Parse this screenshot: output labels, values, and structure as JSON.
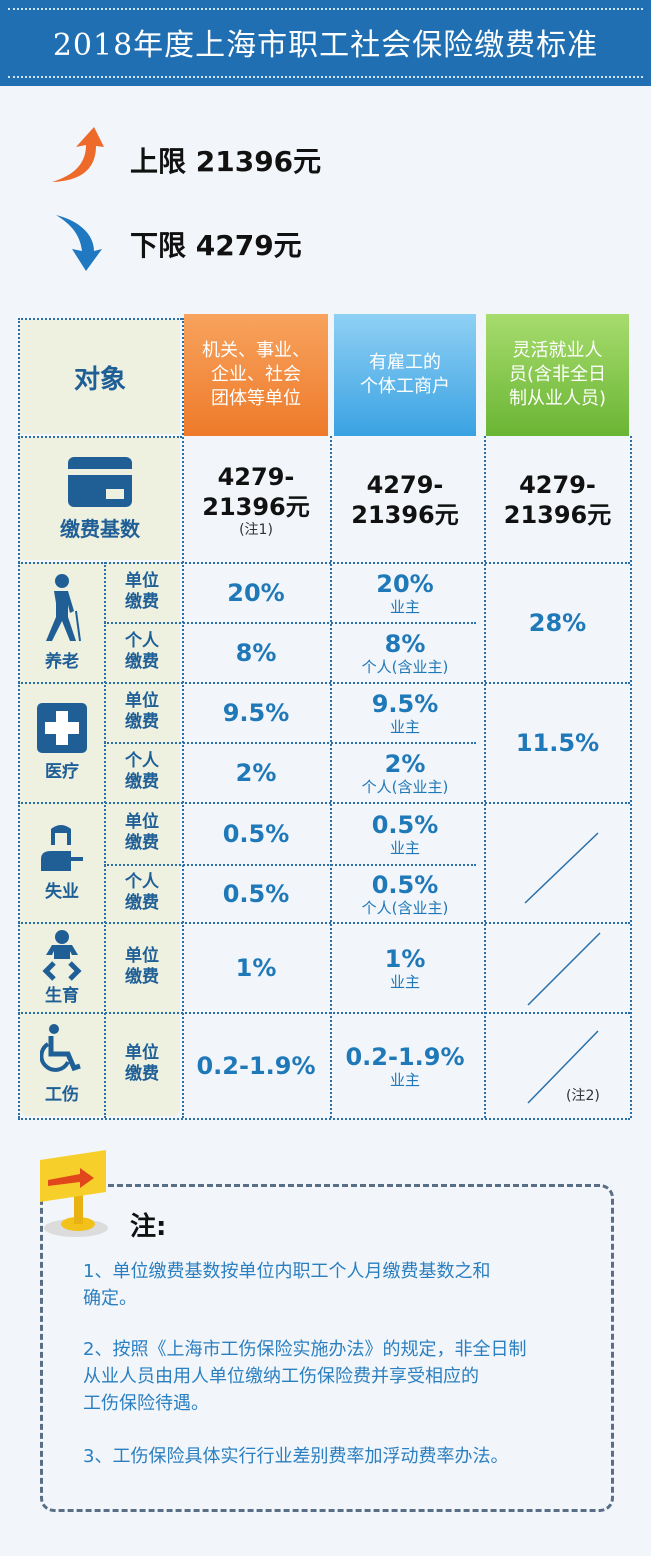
{
  "header": {
    "title": "2018年度上海市职工社会保险缴费标准"
  },
  "limits": {
    "upper": "上限 21396元",
    "lower": "下限 4279元"
  },
  "colors": {
    "header": "#1f6fb2",
    "col1": "#f08a3c",
    "col2": "#4aaee6",
    "col3": "#7cc242",
    "value": "#1f78b8"
  },
  "table": {
    "corner": "对象",
    "columns": [
      [
        "机关、事业、",
        "企业、社会",
        "团体等单位"
      ],
      [
        "有雇工的",
        "个体工商户"
      ],
      [
        "灵活就业人",
        "员(含非全日",
        "制从业人员)"
      ]
    ],
    "base": {
      "label": "缴费基数",
      "icon": "card-icon",
      "values": [
        [
          "4279-",
          "21396元"
        ],
        [
          "4279-",
          "21396元"
        ],
        [
          "4279-",
          "21396元"
        ]
      ],
      "note": "(注1)"
    },
    "unit_label": [
      "单位",
      "缴费"
    ],
    "personal_label": [
      "个人",
      "缴费"
    ],
    "categories": [
      {
        "name": "养老",
        "icon": "elderly-person-icon",
        "unit": "20%",
        "personal": "8%",
        "owner_unit": "20%",
        "owner_unit_sub": "业主",
        "owner_personal": "8%",
        "owner_personal_sub": "个人(含业主)",
        "flexible": "28%"
      },
      {
        "name": "医疗",
        "icon": "medical-cross-icon",
        "unit": "9.5%",
        "personal": "2%",
        "owner_unit": "9.5%",
        "owner_unit_sub": "业主",
        "owner_personal": "2%",
        "owner_personal_sub": "个人(含业主)",
        "flexible": "11.5%"
      },
      {
        "name": "失业",
        "icon": "worker-at-desk-icon",
        "unit": "0.5%",
        "personal": "0.5%",
        "owner_unit": "0.5%",
        "owner_unit_sub": "业主",
        "owner_personal": "0.5%",
        "owner_personal_sub": "个人(含业主)",
        "flexible": ""
      },
      {
        "name": "生育",
        "icon": "baby-icon",
        "unit": "1%",
        "owner_unit": "1%",
        "owner_unit_sub": "业主",
        "flexible": ""
      },
      {
        "name": "工伤",
        "icon": "wheelchair-icon",
        "unit": "0.2-1.9%",
        "owner_unit": "0.2-1.9%",
        "owner_unit_sub": "业主",
        "flexible": "",
        "flexible_note": "(注2)"
      }
    ]
  },
  "notes": {
    "title": "注:",
    "items": [
      [
        "1、单位缴费基数按单位内职工个人月缴费基数之和",
        "确定。"
      ],
      [
        "2、按照《上海市工伤保险实施办法》的规定，非全日制",
        "从业人员由用人单位缴纳工伤保险费并享受相应的",
        "工伤保险待遇。"
      ],
      [
        "3、工伤保险具体实行行业差别费率加浮动费率办法。"
      ]
    ]
  }
}
